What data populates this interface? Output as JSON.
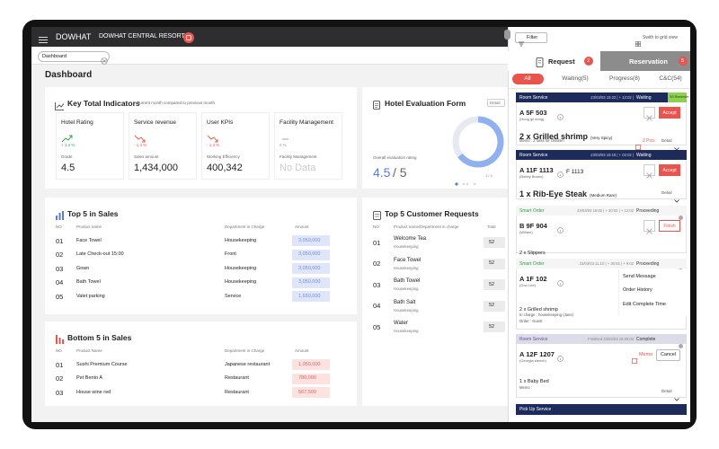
{
  "header": {
    "brand": "DOWHAT",
    "resort": "DOWHAT CENTRAL RESORT"
  },
  "tab": {
    "label": "Dashboard"
  },
  "page_title": "Dashboard",
  "kpi": {
    "title": "Key Total Indicators",
    "subtitle": "Current month compared to previous month",
    "cards": [
      {
        "title": "Hotel Rating",
        "change": "+ 1.4 %",
        "label": "Grade",
        "value": "4.5"
      },
      {
        "title": "Service revenue",
        "change": "- 1.3 %",
        "label": "Sales amount",
        "value": "1,434,000"
      },
      {
        "title": "User KPIs",
        "change": "- 1.3 %",
        "label": "Working Efficiency",
        "value": "400,342"
      },
      {
        "title": "Facility Management",
        "change": "0 %",
        "label": "Facility Management",
        "value": "No Data"
      }
    ]
  },
  "evaluation": {
    "title": "Hotel Evaluation Form",
    "button": "Detail",
    "label": "Overall evaluation rating",
    "score": "4.5",
    "max": "/ 5",
    "pager": "1 / 4"
  },
  "top5_sales": {
    "title": "Top 5 in Sales",
    "columns": [
      "NO",
      "Product name",
      "Department in Charge",
      "Amount"
    ],
    "rows": [
      [
        "01",
        "Face Towel",
        "Housekeeping",
        "3,050,000"
      ],
      [
        "02",
        "Late Check-out 15:00",
        "Front",
        "3,050,000"
      ],
      [
        "03",
        "Gown",
        "Housekeeping",
        "3,050,000"
      ],
      [
        "04",
        "Bath Towel",
        "Housekeeping",
        "3,050,000"
      ],
      [
        "05",
        "Valet parking",
        "Service",
        "1,650,000"
      ]
    ]
  },
  "bottom5_sales": {
    "title": "Bottom 5 in Sales",
    "columns": [
      "NO",
      "Product Name",
      "Department in Charge",
      "Amount"
    ],
    "rows": [
      [
        "01",
        "Sushi Premium Course",
        "Japanese restaurant",
        "1,050,000"
      ],
      [
        "02",
        "Pet Bento A",
        "Restaurant",
        "780,000"
      ],
      [
        "03",
        "House wine red",
        "Restaurant",
        "567,500"
      ]
    ]
  },
  "top5_requests": {
    "title": "Top 5 Customer Requests",
    "columns": [
      "NO",
      "Product name/Department in charge",
      "Total"
    ],
    "rows": [
      {
        "no": "01",
        "name": "Welcome Tea",
        "dept": "Housekeeping",
        "total": "52"
      },
      {
        "no": "02",
        "name": "Face Towel",
        "dept": "Housekeeping",
        "total": "52"
      },
      {
        "no": "03",
        "name": "Bath Towel",
        "dept": "Housekeeping",
        "total": "52"
      },
      {
        "no": "04",
        "name": "Bath Salt",
        "dept": "Housekeeping",
        "total": "52"
      },
      {
        "no": "05",
        "name": "Water",
        "dept": "Housekeeping",
        "total": "52"
      }
    ]
  },
  "panel": {
    "filter": "Filter",
    "grid_switch": "Swith to grid view",
    "tabs": [
      {
        "label": "Request",
        "count": "2"
      },
      {
        "label": "Reservation",
        "count": "5"
      }
    ],
    "status_tabs": [
      "All",
      "Waiting(5)",
      "Progress(8)",
      "C&C(54)"
    ],
    "orders": [
      {
        "service": "Room Service",
        "time": "23/03/03 15:22 | + 12:02 |",
        "status": "Waiting",
        "reminder": "SS Reminder",
        "room": "A 5F 503",
        "guest": "(Hong gil dong)",
        "item": "2 x Grilled shrimp",
        "note": "(Very Spicy)",
        "memo": "Memo : 2 forks for children",
        "action": "Accept",
        "pics": "2 Pics",
        "detail": "Detail"
      },
      {
        "service": "Room Service",
        "time": "23/03/03 15:18 | + 02:02 |",
        "status": "Waiting",
        "room": "A 11F 1113",
        "guest": "(Bobby Brown)",
        "unit": "F 1113",
        "item": "1 x Rib-Eye Steak",
        "note": "(Medium Rare)",
        "action": "Accept",
        "detail": "Detail"
      },
      {
        "service": "Smart Order",
        "time": "23/03/03 15:00 | + 30:02 | + 12:02",
        "status": "Proceeding",
        "room": "B 9F 904",
        "guest": "(Willam)",
        "item": "2 x Slippers",
        "action": "Finish"
      },
      {
        "service": "Smart Order",
        "time": "23/03/03 11:10 | + 30:02 | + 8:02",
        "status": "Proceeding",
        "room": "A 1F 102",
        "guest": "(Goo Lee)",
        "item": "2 x Grilled shrimp",
        "in_charge": "In charge : housekeeping (Jane)",
        "order_by": "Order : Guest",
        "menu": [
          "Send Message",
          "Order History",
          "Edit Complete Time"
        ]
      },
      {
        "service": "Room Service",
        "time": "Finished   23/03/03 10:30:04",
        "status": "Complete",
        "room": "A 12F 1207",
        "guest": "(Georgia stench)",
        "item": "1 x Baby Bed",
        "memo": "Memo :",
        "memo_button": "Memo",
        "cancel": "Cancel",
        "detail": "Detail"
      }
    ],
    "pickup": "Pick Up Service"
  }
}
